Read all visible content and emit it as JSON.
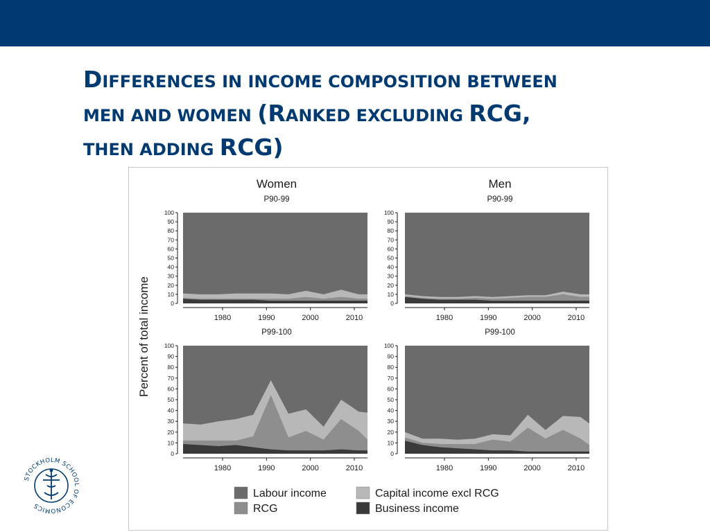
{
  "header": {
    "bar_color": "#003a70"
  },
  "slide": {
    "title_lines": [
      [
        {
          "t": "D",
          "cap": true
        },
        {
          "t": "IFFERENCES IN INCOME COMPOSITION BETWEEN",
          "cap": false
        }
      ],
      [
        {
          "t": "MEN AND WOMEN ",
          "cap": false
        },
        {
          "t": "(R",
          "cap": true
        },
        {
          "t": "ANKED EXCLUDING ",
          "cap": false
        },
        {
          "t": "RCG,",
          "cap": true
        }
      ],
      [
        {
          "t": "THEN ADDING ",
          "cap": false
        },
        {
          "t": "RCG)",
          "cap": true
        }
      ]
    ],
    "title_color": "#003a70"
  },
  "logo": {
    "text": "STOCKHOLM SCHOOL OF ECONOMICS",
    "color": "#003a70"
  },
  "chart_data": {
    "type": "area",
    "stacked": true,
    "ylabel": "Percent of total income",
    "x_ticks": [
      1980,
      1990,
      2000,
      2010
    ],
    "y_ticks": [
      0,
      10,
      20,
      30,
      40,
      50,
      60,
      70,
      80,
      90,
      100
    ],
    "xlim": [
      1971,
      2013
    ],
    "ylim": [
      0,
      100
    ],
    "colors": {
      "business": "#3a3a3a",
      "rcg": "#8e8e8e",
      "capital": "#b8b8b8",
      "labour": "#6b6b6b"
    },
    "legend": {
      "placement": "bottom",
      "items": [
        {
          "key": "labour",
          "label": "Labour income"
        },
        {
          "key": "capital",
          "label": "Capital income excl RCG"
        },
        {
          "key": "rcg",
          "label": "RCG"
        },
        {
          "key": "business",
          "label": "Business income"
        }
      ]
    },
    "columns": [
      {
        "name": "Women",
        "position": "left"
      },
      {
        "name": "Men",
        "position": "right"
      }
    ],
    "panels": [
      {
        "column": "Women",
        "subtitle": "P90-99",
        "years": [
          1971,
          1975,
          1979,
          1983,
          1987,
          1991,
          1995,
          1999,
          2003,
          2007,
          2011,
          2013
        ],
        "business": [
          5,
          4,
          4,
          4,
          4,
          3,
          3,
          3,
          3,
          3,
          3,
          3
        ],
        "rcg": [
          1,
          1,
          1,
          1,
          1,
          2,
          2,
          4,
          2,
          4,
          2,
          2
        ],
        "capital": [
          5,
          5,
          5,
          6,
          6,
          6,
          5,
          7,
          5,
          8,
          5,
          5
        ]
      },
      {
        "column": "Men",
        "subtitle": "P90-99",
        "years": [
          1971,
          1975,
          1979,
          1983,
          1987,
          1991,
          1995,
          1999,
          2003,
          2007,
          2011,
          2013
        ],
        "business": [
          7,
          5,
          4,
          4,
          4,
          3,
          3,
          3,
          3,
          3,
          3,
          3
        ],
        "rcg": [
          1,
          1,
          1,
          1,
          2,
          2,
          3,
          4,
          4,
          7,
          4,
          4
        ],
        "capital": [
          2,
          2,
          2,
          2,
          2,
          2,
          2,
          2,
          2,
          3,
          3,
          3
        ]
      },
      {
        "column": "Women",
        "subtitle": "P99-100",
        "years": [
          1971,
          1975,
          1979,
          1983,
          1987,
          1991,
          1995,
          1999,
          2003,
          2007,
          2011,
          2013
        ],
        "business": [
          9,
          8,
          7,
          8,
          6,
          4,
          3,
          3,
          3,
          4,
          3,
          3
        ],
        "rcg": [
          3,
          4,
          5,
          4,
          10,
          50,
          12,
          18,
          10,
          28,
          18,
          10
        ],
        "capital": [
          16,
          15,
          18,
          20,
          20,
          14,
          22,
          20,
          12,
          18,
          18,
          25
        ]
      },
      {
        "column": "Men",
        "subtitle": "P99-100",
        "years": [
          1971,
          1975,
          1979,
          1983,
          1987,
          1991,
          1995,
          1999,
          2003,
          2007,
          2011,
          2013
        ],
        "business": [
          12,
          8,
          6,
          5,
          4,
          3,
          3,
          2,
          2,
          2,
          2,
          2
        ],
        "rcg": [
          3,
          2,
          3,
          4,
          5,
          10,
          8,
          22,
          12,
          20,
          12,
          6
        ],
        "capital": [
          5,
          4,
          5,
          4,
          5,
          5,
          6,
          12,
          8,
          13,
          20,
          20
        ]
      }
    ]
  }
}
